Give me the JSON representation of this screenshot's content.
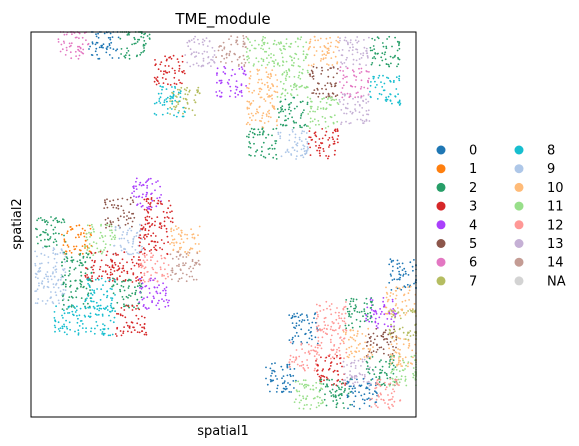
{
  "chart_data": {
    "type": "scatter",
    "title": "TME_module",
    "xlabel": "spatial1",
    "ylabel": "spatial2",
    "xticks": [],
    "yticks": [],
    "grid": false,
    "legend_placement": "right",
    "legend_columns": 2,
    "xlim": [
      0,
      1
    ],
    "ylim": [
      0,
      1
    ],
    "categories": [
      "0",
      "1",
      "2",
      "3",
      "4",
      "5",
      "6",
      "7",
      "8",
      "9",
      "10",
      "11",
      "12",
      "13",
      "14",
      "NA"
    ],
    "colors": [
      "#1f77b4",
      "#ff7f0e",
      "#279e68",
      "#d62728",
      "#aa40fc",
      "#8c564b",
      "#e377c2",
      "#b5bd61",
      "#17becf",
      "#aec7e8",
      "#ffbb78",
      "#98df8a",
      "#ff9896",
      "#c5b0d5",
      "#c49c94",
      "#d3d3d3"
    ],
    "regions": [
      {
        "name": "top-right tissue",
        "patches": [
          {
            "x": 0.11,
            "y": 0.97,
            "category": "6"
          },
          {
            "x": 0.19,
            "y": 0.97,
            "category": "0"
          },
          {
            "x": 0.27,
            "y": 0.97,
            "category": "2"
          },
          {
            "x": 0.36,
            "y": 0.9,
            "category": "3"
          },
          {
            "x": 0.44,
            "y": 0.95,
            "category": "13"
          },
          {
            "x": 0.52,
            "y": 0.95,
            "category": "14"
          },
          {
            "x": 0.6,
            "y": 0.95,
            "category": "11"
          },
          {
            "x": 0.68,
            "y": 0.95,
            "category": "11"
          },
          {
            "x": 0.76,
            "y": 0.95,
            "category": "10"
          },
          {
            "x": 0.84,
            "y": 0.95,
            "category": "13"
          },
          {
            "x": 0.92,
            "y": 0.95,
            "category": "2"
          },
          {
            "x": 0.52,
            "y": 0.87,
            "category": "4"
          },
          {
            "x": 0.6,
            "y": 0.87,
            "category": "10"
          },
          {
            "x": 0.68,
            "y": 0.87,
            "category": "11"
          },
          {
            "x": 0.76,
            "y": 0.87,
            "category": "5"
          },
          {
            "x": 0.84,
            "y": 0.87,
            "category": "6"
          },
          {
            "x": 0.4,
            "y": 0.82,
            "category": "7"
          },
          {
            "x": 0.6,
            "y": 0.79,
            "category": "10"
          },
          {
            "x": 0.68,
            "y": 0.79,
            "category": "2"
          },
          {
            "x": 0.76,
            "y": 0.79,
            "category": "11"
          },
          {
            "x": 0.84,
            "y": 0.8,
            "category": "13"
          },
          {
            "x": 0.6,
            "y": 0.71,
            "category": "2"
          },
          {
            "x": 0.68,
            "y": 0.71,
            "category": "9"
          },
          {
            "x": 0.76,
            "y": 0.71,
            "category": "3"
          },
          {
            "x": 0.92,
            "y": 0.85,
            "category": "8"
          },
          {
            "x": 0.36,
            "y": 0.82,
            "category": "8"
          }
        ]
      },
      {
        "name": "left tissue",
        "patches": [
          {
            "x": 0.3,
            "y": 0.58,
            "category": "4"
          },
          {
            "x": 0.23,
            "y": 0.53,
            "category": "5"
          },
          {
            "x": 0.33,
            "y": 0.53,
            "category": "3"
          },
          {
            "x": 0.05,
            "y": 0.48,
            "category": "2"
          },
          {
            "x": 0.12,
            "y": 0.46,
            "category": "1"
          },
          {
            "x": 0.18,
            "y": 0.46,
            "category": "11"
          },
          {
            "x": 0.25,
            "y": 0.46,
            "category": "9"
          },
          {
            "x": 0.32,
            "y": 0.46,
            "category": "3"
          },
          {
            "x": 0.4,
            "y": 0.46,
            "category": "10"
          },
          {
            "x": 0.05,
            "y": 0.4,
            "category": "9"
          },
          {
            "x": 0.12,
            "y": 0.39,
            "category": "2"
          },
          {
            "x": 0.18,
            "y": 0.39,
            "category": "3"
          },
          {
            "x": 0.25,
            "y": 0.39,
            "category": "3"
          },
          {
            "x": 0.32,
            "y": 0.39,
            "category": "12"
          },
          {
            "x": 0.4,
            "y": 0.39,
            "category": "14"
          },
          {
            "x": 0.05,
            "y": 0.33,
            "category": "9"
          },
          {
            "x": 0.12,
            "y": 0.32,
            "category": "2"
          },
          {
            "x": 0.18,
            "y": 0.32,
            "category": "8"
          },
          {
            "x": 0.25,
            "y": 0.32,
            "category": "2"
          },
          {
            "x": 0.32,
            "y": 0.32,
            "category": "4"
          },
          {
            "x": 0.1,
            "y": 0.25,
            "category": "8"
          },
          {
            "x": 0.18,
            "y": 0.25,
            "category": "8"
          },
          {
            "x": 0.26,
            "y": 0.25,
            "category": "3"
          }
        ]
      },
      {
        "name": "bottom-right tissue",
        "patches": [
          {
            "x": 0.97,
            "y": 0.37,
            "category": "0"
          },
          {
            "x": 0.96,
            "y": 0.3,
            "category": "10"
          },
          {
            "x": 0.91,
            "y": 0.27,
            "category": "4"
          },
          {
            "x": 0.85,
            "y": 0.27,
            "category": "2"
          },
          {
            "x": 0.78,
            "y": 0.26,
            "category": "12"
          },
          {
            "x": 0.97,
            "y": 0.24,
            "category": "7"
          },
          {
            "x": 0.71,
            "y": 0.23,
            "category": "0"
          },
          {
            "x": 0.78,
            "y": 0.19,
            "category": "12"
          },
          {
            "x": 0.85,
            "y": 0.19,
            "category": "10"
          },
          {
            "x": 0.91,
            "y": 0.19,
            "category": "5"
          },
          {
            "x": 0.97,
            "y": 0.17,
            "category": "10"
          },
          {
            "x": 0.71,
            "y": 0.16,
            "category": "12"
          },
          {
            "x": 0.78,
            "y": 0.12,
            "category": "3"
          },
          {
            "x": 0.85,
            "y": 0.12,
            "category": "13"
          },
          {
            "x": 0.91,
            "y": 0.12,
            "category": "2"
          },
          {
            "x": 0.97,
            "y": 0.12,
            "category": "11"
          },
          {
            "x": 0.65,
            "y": 0.1,
            "category": "0"
          },
          {
            "x": 0.72,
            "y": 0.06,
            "category": "11"
          },
          {
            "x": 0.79,
            "y": 0.06,
            "category": "2"
          },
          {
            "x": 0.86,
            "y": 0.06,
            "category": "0"
          },
          {
            "x": 0.92,
            "y": 0.06,
            "category": "12"
          }
        ]
      }
    ]
  }
}
